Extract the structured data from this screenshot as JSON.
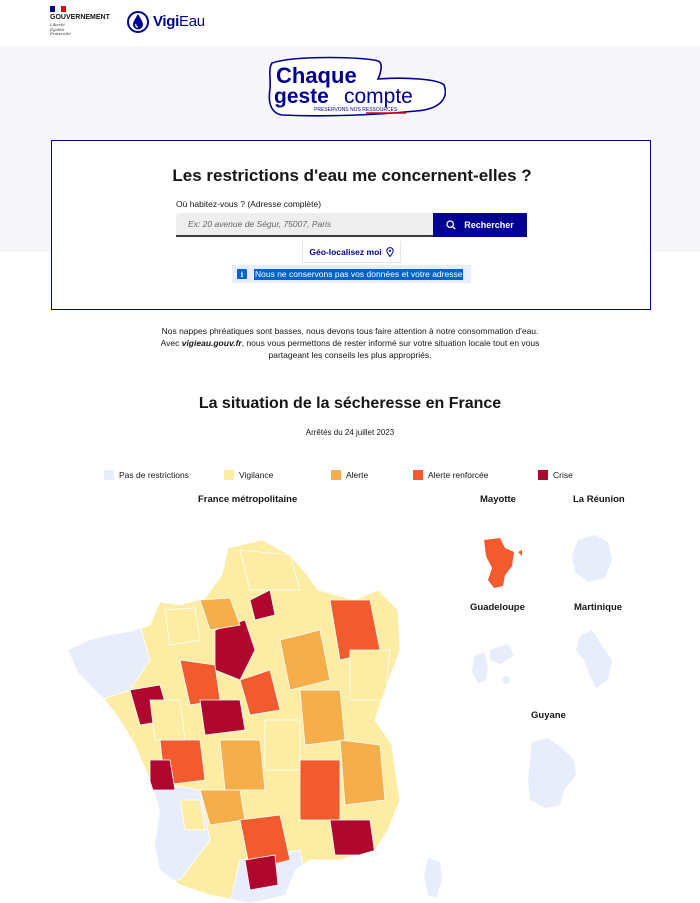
{
  "header": {
    "gov_name_line1": "GOUVERNEMENT",
    "motto": [
      "Liberté",
      "Égalité",
      "Fraternité"
    ],
    "app_name_bold": "Vigi",
    "app_name_light": "Eau"
  },
  "slogan": {
    "line1": "Chaque",
    "line2_bold": "geste",
    "line2_light": "compte",
    "tagline": "PRÉSERVONS NOS RESSOURCES"
  },
  "search": {
    "title": "Les restrictions d'eau me concernent-elles ?",
    "label": "Où habitez-vous ? (Adresse complète)",
    "placeholder": "Ex: 20 avenue de Ségur, 75007, Paris",
    "button_label": "Rechercher",
    "geo_label": "Géo-localisez moi",
    "notice": "Nous ne conservons pas vos données et votre adresse"
  },
  "intro": {
    "line1": "Nos nappes phréatiques sont basses, nous devons tous faire attention à notre consommation d'eau.",
    "line2_prefix": "Avec ",
    "line2_site": "vigieau.gouv.fr",
    "line2_suffix": ", nous vous permettons de rester informé sur votre situation locale tout en vous",
    "line3": "partageant les conseils les plus appropriés."
  },
  "section": {
    "title": "La situation de la sécheresse en France",
    "date": "Arrêtés du 24 juillet 2023"
  },
  "legend": [
    {
      "label": "Pas de restrictions",
      "color": "#e8edfc"
    },
    {
      "label": "Vigilance",
      "color": "#fdeca3"
    },
    {
      "label": "Alerte",
      "color": "#f6ae4a"
    },
    {
      "label": "Alerte renforcée",
      "color": "#f15b2d"
    },
    {
      "label": "Crise",
      "color": "#b0072f"
    }
  ],
  "maps": {
    "metro": "France métropolitaine",
    "mayotte": "Mayotte",
    "reunion": "La Réunion",
    "guadeloupe": "Guadeloupe",
    "martinique": "Martinique",
    "guyane": "Guyane"
  },
  "colors": {
    "brand_blue": "#000091",
    "info_blue": "#0063cb"
  }
}
